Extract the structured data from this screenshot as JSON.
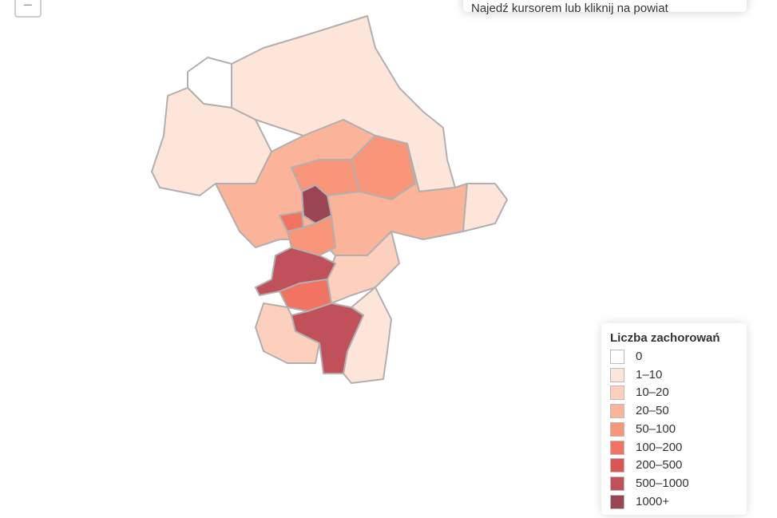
{
  "zoom_out": "−",
  "info_text": "Najedź kursorem lub kliknij na powiat",
  "legend": {
    "title": "Liczba zachorowań",
    "items": [
      {
        "label": "0",
        "color": "#ffffff"
      },
      {
        "label": "1–10",
        "color": "#fde5da"
      },
      {
        "label": "10–20",
        "color": "#fcd0bc"
      },
      {
        "label": "20–50",
        "color": "#fbb39a"
      },
      {
        "label": "50–100",
        "color": "#f99578"
      },
      {
        "label": "100–200",
        "color": "#f07461"
      },
      {
        "label": "200–500",
        "color": "#dc5454"
      },
      {
        "label": "500–1000",
        "color": "#c0505a"
      },
      {
        "label": "1000+",
        "color": "#9b4552"
      }
    ]
  }
}
